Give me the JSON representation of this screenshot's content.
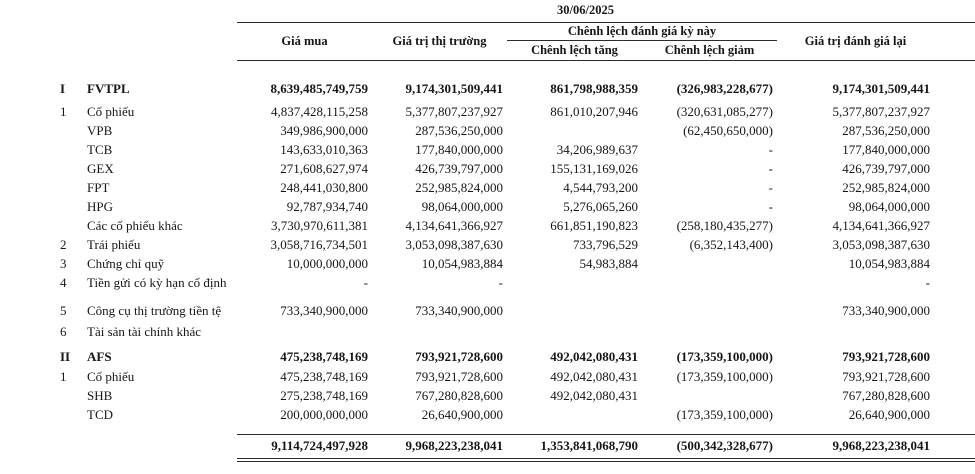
{
  "header": {
    "date": "30/06/2025",
    "columns": {
      "gia_mua": "Giá mua",
      "gia_tri_thi_truong": "Giá trị thị trường",
      "chenh_lech_group": "Chênh lệch đánh giá kỳ này",
      "chenh_lech_tang": "Chênh lệch tăng",
      "chenh_lech_giam": "Chênh lệch giảm",
      "gia_tri_danh_gia_lai": "Giá trị đánh giá lại"
    }
  },
  "rows": [
    {
      "no": "I",
      "label": "FVTPL",
      "bold": true,
      "gap_before": 19,
      "values": [
        "8,639,485,749,759",
        "9,174,301,509,441",
        "861,798,988,359",
        "(326,983,228,677)",
        "9,174,301,509,441"
      ]
    },
    {
      "no": "1",
      "label": "Cổ phiếu",
      "bold": false,
      "gap_before": 4,
      "values": [
        "4,837,428,115,258",
        "5,377,807,237,927",
        "861,010,207,946",
        "(320,631,085,277)",
        "5,377,807,237,927"
      ]
    },
    {
      "no": "",
      "label": "VPB",
      "bold": false,
      "gap_before": 0,
      "values": [
        "349,986,900,000",
        "287,536,250,000",
        "",
        "(62,450,650,000)",
        "287,536,250,000"
      ]
    },
    {
      "no": "",
      "label": "TCB",
      "bold": false,
      "gap_before": 0,
      "values": [
        "143,633,010,363",
        "177,840,000,000",
        "34,206,989,637",
        "-",
        "177,840,000,000"
      ]
    },
    {
      "no": "",
      "label": "GEX",
      "bold": false,
      "gap_before": 0,
      "values": [
        "271,608,627,974",
        "426,739,797,000",
        "155,131,169,026",
        "-",
        "426,739,797,000"
      ]
    },
    {
      "no": "",
      "label": "FPT",
      "bold": false,
      "gap_before": 0,
      "values": [
        "248,441,030,800",
        "252,985,824,000",
        "4,544,793,200",
        "-",
        "252,985,824,000"
      ]
    },
    {
      "no": "",
      "label": "HPG",
      "bold": false,
      "gap_before": 0,
      "values": [
        "92,787,934,740",
        "98,064,000,000",
        "5,276,065,260",
        "-",
        "98,064,000,000"
      ]
    },
    {
      "no": "",
      "label": "Các cổ phiếu khác",
      "bold": false,
      "gap_before": 0,
      "values": [
        "3,730,970,611,381",
        "4,134,641,366,927",
        "661,851,190,823",
        "(258,180,435,277)",
        "4,134,641,366,927"
      ]
    },
    {
      "no": "2",
      "label": "Trái phiếu",
      "bold": false,
      "gap_before": 0,
      "values": [
        "3,058,716,734,501",
        "3,053,098,387,630",
        "733,796,529",
        "(6,352,143,400)",
        "3,053,098,387,630"
      ]
    },
    {
      "no": "3",
      "label": "Chứng chỉ quỹ",
      "bold": false,
      "gap_before": 0,
      "values": [
        "10,000,000,000",
        "10,054,983,884",
        "54,983,884",
        "",
        "10,054,983,884"
      ]
    },
    {
      "no": "4",
      "label": "Tiền gửi có kỳ hạn cố định",
      "bold": false,
      "gap_before": 0,
      "values": [
        "-",
        "-",
        "",
        "",
        "-"
      ]
    },
    {
      "no": "5",
      "label": "Công cụ thị trường tiền tệ",
      "bold": false,
      "gap_before": 9,
      "values": [
        "733,340,900,000",
        "733,340,900,000",
        "",
        "",
        "733,340,900,000"
      ]
    },
    {
      "no": "6",
      "label": "Tài sản tài chính khác",
      "bold": false,
      "gap_before": 2,
      "values": [
        "",
        "",
        "",
        "",
        ""
      ]
    },
    {
      "no": "II",
      "label": "AFS",
      "bold": true,
      "gap_before": 6,
      "values": [
        "475,238,748,169",
        "793,921,728,600",
        "492,042,080,431",
        "(173,359,100,000)",
        "793,921,728,600"
      ]
    },
    {
      "no": "1",
      "label": "Cổ phiếu",
      "bold": false,
      "gap_before": 1,
      "values": [
        "475,238,748,169",
        "793,921,728,600",
        "492,042,080,431",
        "(173,359,100,000)",
        "793,921,728,600"
      ]
    },
    {
      "no": "",
      "label": "SHB",
      "bold": false,
      "gap_before": 0,
      "values": [
        "275,238,748,169",
        "767,280,828,600",
        "492,042,080,431",
        "",
        "767,280,828,600"
      ]
    },
    {
      "no": "",
      "label": "TCD",
      "bold": false,
      "gap_before": 0,
      "values": [
        "200,000,000,000",
        "26,640,900,000",
        "",
        "(173,359,100,000)",
        "26,640,900,000"
      ]
    }
  ],
  "total": {
    "values": [
      "9,114,724,497,928",
      "9,968,223,238,041",
      "1,353,841,068,790",
      "(500,342,328,677)",
      "9,968,223,238,041"
    ]
  }
}
